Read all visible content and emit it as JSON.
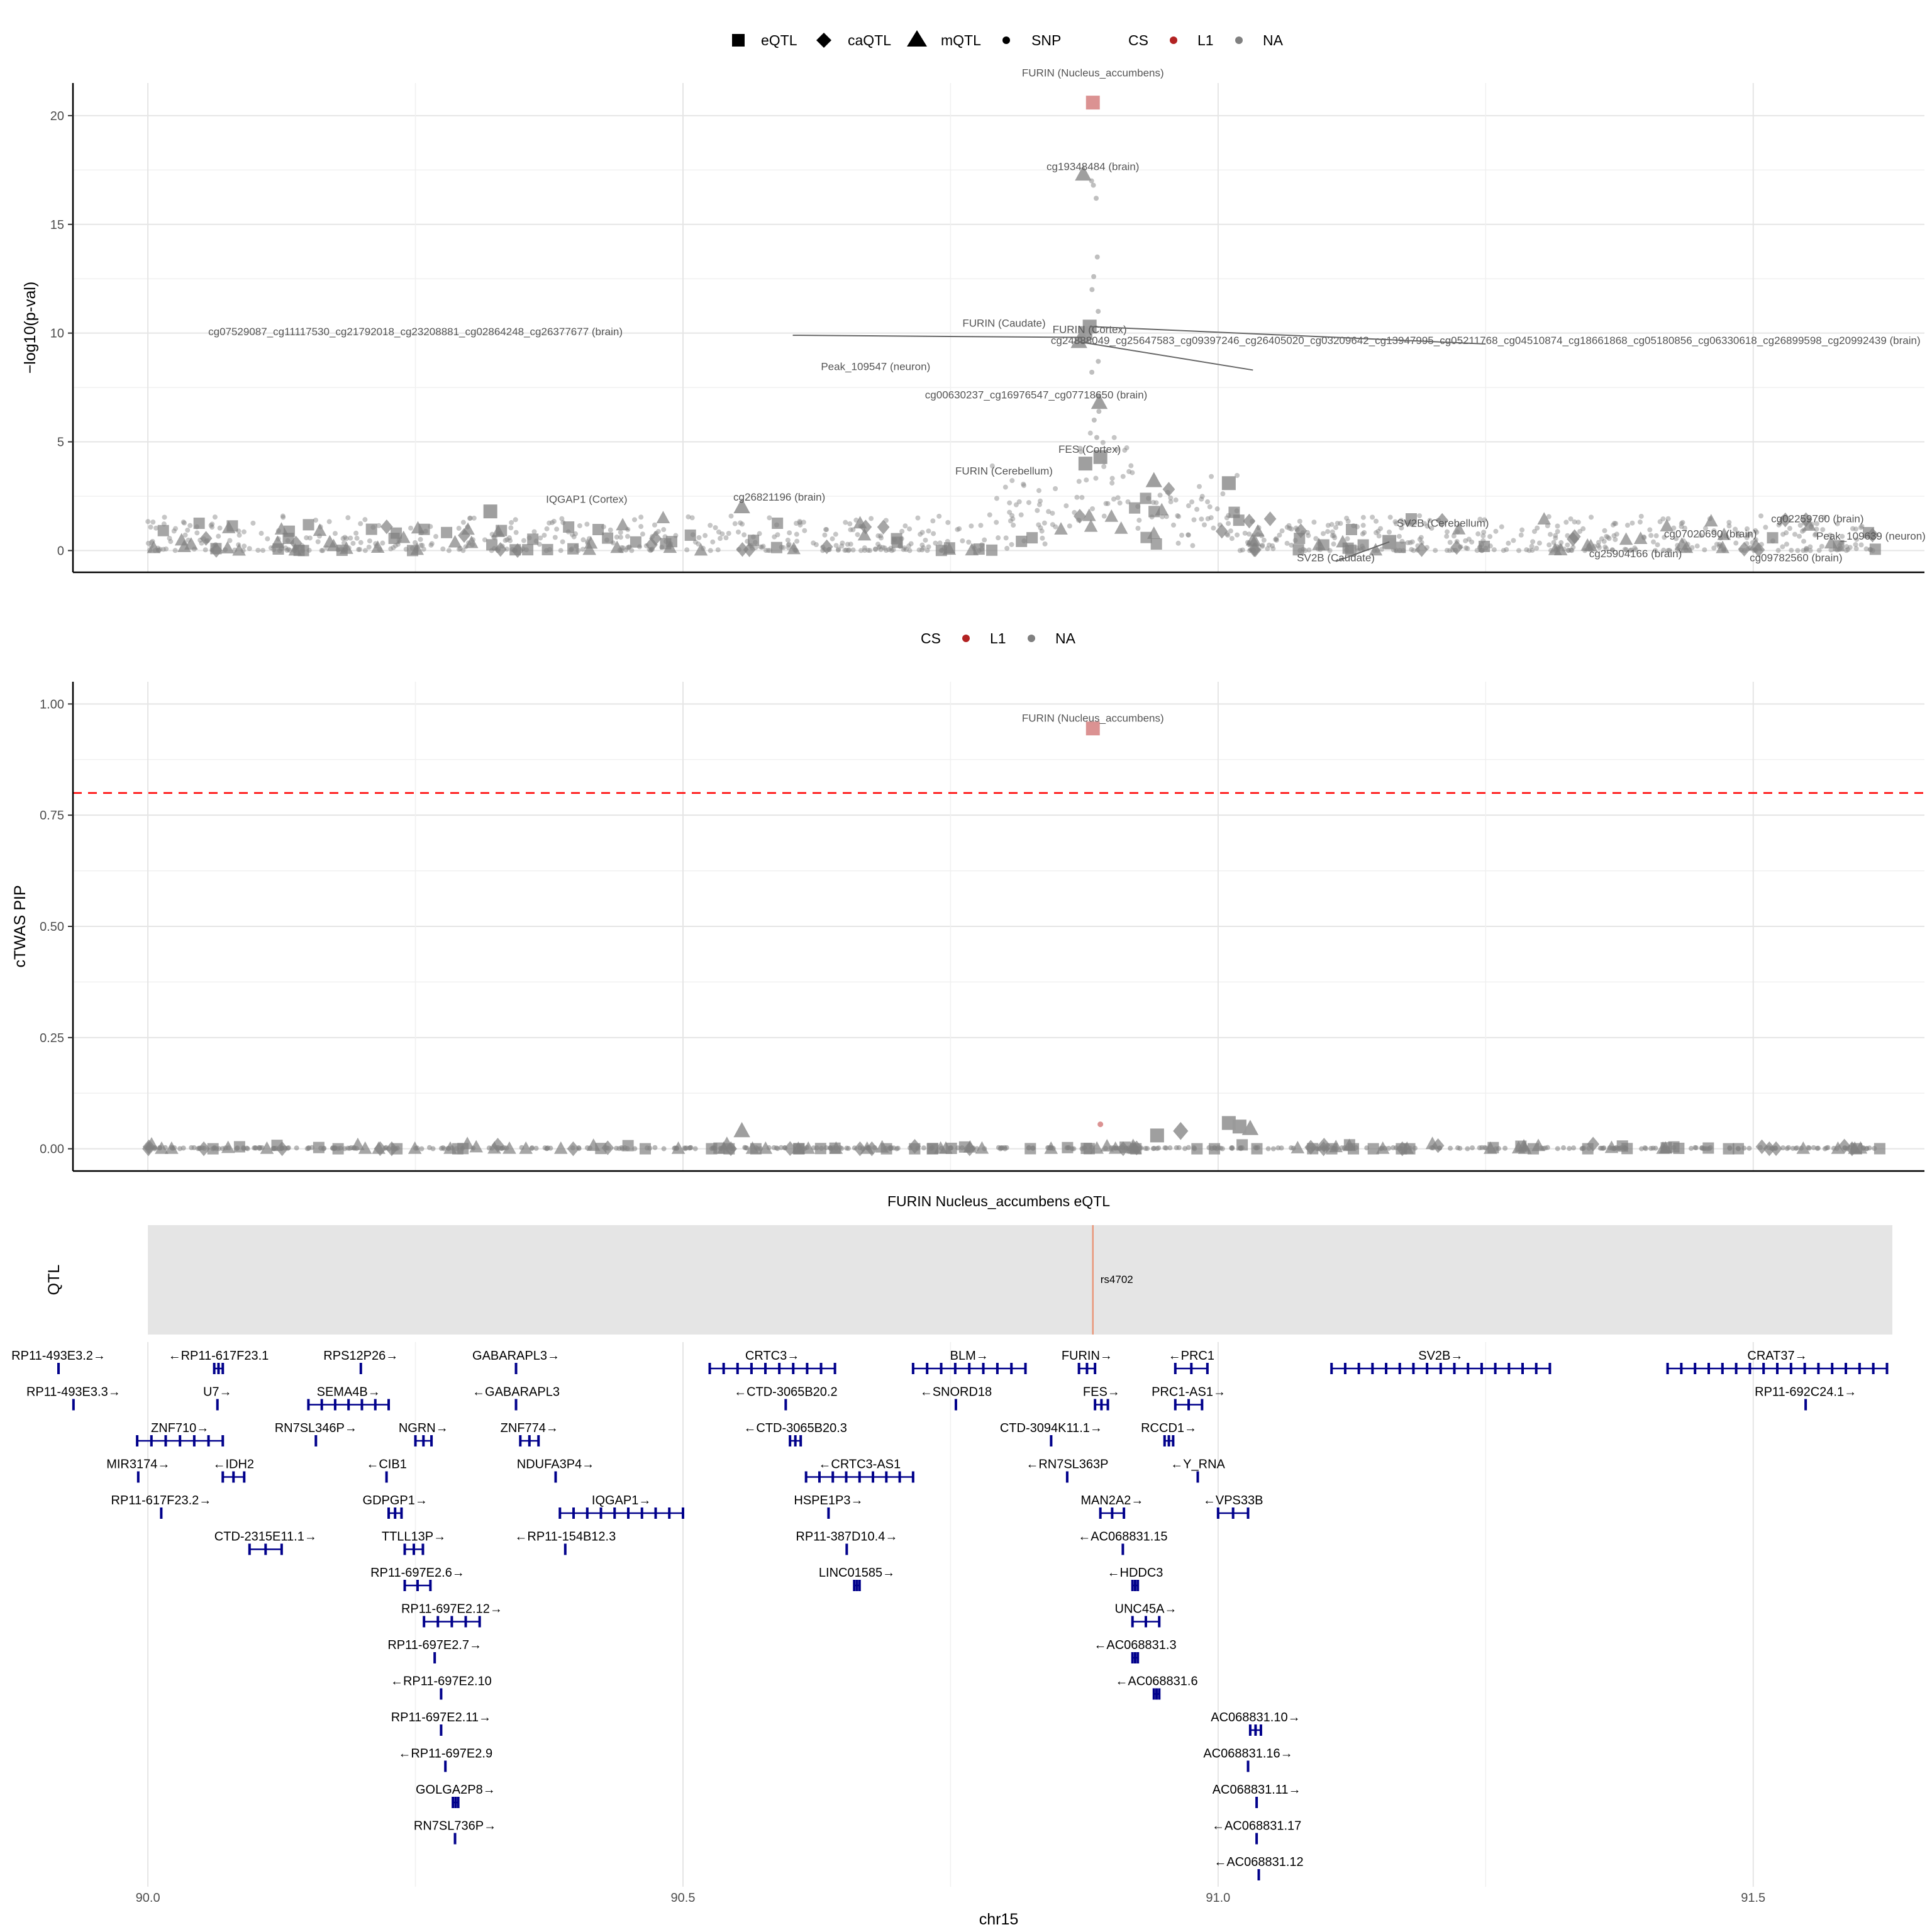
{
  "legend_top": {
    "shape_items": [
      {
        "label": "eQTL",
        "shape": "square"
      },
      {
        "label": "caQTL",
        "shape": "diamond"
      },
      {
        "label": "mQTL",
        "shape": "triangle"
      },
      {
        "label": "SNP",
        "shape": "dot"
      }
    ],
    "cs_title": "CS",
    "cs_items": [
      {
        "label": "L1",
        "color": "#B22222"
      },
      {
        "label": "NA",
        "color": "#808080"
      }
    ]
  },
  "legend_mid": {
    "cs_title": "CS",
    "cs_items": [
      {
        "label": "L1",
        "color": "#B22222"
      },
      {
        "label": "NA",
        "color": "#808080"
      }
    ]
  },
  "chart_data": [
    {
      "type": "scatter",
      "title": "",
      "ylabel": "−log10(p-val)",
      "xlim": [
        89.93,
        91.66
      ],
      "ylim": [
        -1,
        21.5
      ],
      "yticks": [
        0,
        5,
        10,
        15,
        20
      ],
      "grid": true,
      "highlight_points": [
        {
          "x": 90.883,
          "y": 20.6,
          "shape": "square",
          "cs": "L1"
        },
        {
          "x": 90.874,
          "y": 17.3,
          "shape": "triangle",
          "cs": "NA"
        },
        {
          "x": 90.876,
          "y": 10.0,
          "shape": "square",
          "cs": "NA"
        },
        {
          "x": 90.88,
          "y": 10.3,
          "shape": "square",
          "cs": "NA"
        },
        {
          "x": 90.873,
          "y": 9.8,
          "shape": "triangle",
          "cs": "NA"
        },
        {
          "x": 90.87,
          "y": 9.6,
          "shape": "triangle",
          "cs": "NA"
        },
        {
          "x": 90.889,
          "y": 6.8,
          "shape": "triangle",
          "cs": "NA"
        },
        {
          "x": 90.89,
          "y": 4.3,
          "shape": "square",
          "cs": "NA"
        },
        {
          "x": 90.876,
          "y": 4.0,
          "shape": "square",
          "cs": "NA"
        },
        {
          "x": 90.32,
          "y": 1.8,
          "shape": "square",
          "cs": "NA"
        },
        {
          "x": 90.555,
          "y": 2.0,
          "shape": "triangle",
          "cs": "NA"
        },
        {
          "x": 90.94,
          "y": 3.2,
          "shape": "triangle",
          "cs": "NA"
        },
        {
          "x": 91.01,
          "y": 3.1,
          "shape": "square",
          "cs": "NA"
        },
        {
          "x": 91.16,
          "y": 0.4,
          "shape": "square",
          "cs": "NA"
        }
      ],
      "annotations": [
        {
          "text": "FURIN (Nucleus_accumbens)",
          "x": 90.883,
          "y": 21.8
        },
        {
          "text": "cg19348484 (brain)",
          "x": 90.883,
          "y": 17.5
        },
        {
          "text": "FURIN (Cortex)",
          "x": 90.88,
          "y": 10.0
        },
        {
          "text": "FURIN (Caudate)",
          "x": 90.8,
          "y": 10.3
        },
        {
          "text": "cg07529087_cg11117530_cg21792018_cg23208881_cg02864248_cg26377677 (brain)",
          "x": 90.25,
          "y": 9.9
        },
        {
          "text": "cg24888049_cg25647583_cg09397246_cg26405020_cg03209642_cg13947995_cg05211768_cg04510874_cg18661868_cg05180856_cg06330618_cg26899598_cg20992439 (brain)",
          "x": 91.25,
          "y": 9.5
        },
        {
          "text": "Peak_109547 (neuron)",
          "x": 90.68,
          "y": 8.3
        },
        {
          "text": "cg00630237_cg16976547_cg07718650 (brain)",
          "x": 90.83,
          "y": 7.0
        },
        {
          "text": "FES (Cortex)",
          "x": 90.88,
          "y": 4.5
        },
        {
          "text": "FURIN (Cerebellum)",
          "x": 90.8,
          "y": 3.5
        },
        {
          "text": "IQGAP1 (Cortex)",
          "x": 90.41,
          "y": 2.2
        },
        {
          "text": "cg26821196 (brain)",
          "x": 90.59,
          "y": 2.3
        },
        {
          "text": "SV2B (Cerebellum)",
          "x": 91.21,
          "y": 1.1
        },
        {
          "text": "SV2B (Caudate)",
          "x": 91.11,
          "y": -0.5
        },
        {
          "text": "cg02259760 (brain)",
          "x": 91.56,
          "y": 1.3
        },
        {
          "text": "cg07020690 (brain)",
          "x": 91.46,
          "y": 0.6
        },
        {
          "text": "Peak_109639 (neuron)",
          "x": 91.61,
          "y": 0.5
        },
        {
          "text": "cg25904166 (brain)",
          "x": 91.39,
          "y": -0.3
        },
        {
          "text": "cg09782560 (brain)",
          "x": 91.54,
          "y": -0.5
        }
      ]
    },
    {
      "type": "scatter",
      "title": "",
      "ylabel": "cTWAS PIP",
      "xlim": [
        89.93,
        91.66
      ],
      "ylim": [
        -0.05,
        1.05
      ],
      "yticks": [
        0.0,
        0.25,
        0.5,
        0.75,
        1.0
      ],
      "ytick_labels": [
        "0.00",
        "0.25",
        "0.50",
        "0.75",
        "1.00"
      ],
      "threshold": 0.8,
      "grid": true,
      "highlight_points": [
        {
          "x": 90.883,
          "y": 0.945,
          "shape": "square",
          "cs": "L1"
        },
        {
          "x": 90.555,
          "y": 0.04,
          "shape": "triangle",
          "cs": "NA"
        },
        {
          "x": 90.965,
          "y": 0.04,
          "shape": "diamond",
          "cs": "NA"
        },
        {
          "x": 91.01,
          "y": 0.058,
          "shape": "square",
          "cs": "NA"
        },
        {
          "x": 91.02,
          "y": 0.05,
          "shape": "square",
          "cs": "NA"
        },
        {
          "x": 91.03,
          "y": 0.045,
          "shape": "triangle",
          "cs": "NA"
        },
        {
          "x": 90.943,
          "y": 0.03,
          "shape": "square",
          "cs": "NA"
        },
        {
          "x": 90.89,
          "y": 0.055,
          "shape": "dot",
          "cs": "L1"
        }
      ],
      "annotations": [
        {
          "text": "FURIN (Nucleus_accumbens)",
          "x": 90.883,
          "y": 0.96
        }
      ]
    },
    {
      "type": "track",
      "title": "FURIN Nucleus_accumbens eQTL",
      "ylabel": "QTL",
      "xlim": [
        89.93,
        91.66
      ],
      "qtl_track": {
        "start": 90.0,
        "end": 91.63,
        "variant_x": 90.883,
        "variant_label": "rs4702"
      }
    },
    {
      "type": "gene_track",
      "xlabel": "chr15",
      "xlim": [
        89.93,
        91.66
      ],
      "xticks": [
        90.0,
        90.5,
        91.0,
        91.5
      ],
      "xtick_labels": [
        "90.0",
        "90.5",
        "91.0",
        "91.5"
      ],
      "genes": [
        {
          "label": "RP11-493E3.2→",
          "start": 89.915,
          "end": 89.918,
          "row": 0
        },
        {
          "label": "RP11-493E3.3→",
          "start": 89.929,
          "end": 89.932,
          "row": 1
        },
        {
          "label": "←RP11-617F23.1",
          "start": 90.062,
          "end": 90.07,
          "row": 0
        },
        {
          "label": "U7→",
          "start": 90.064,
          "end": 90.066,
          "row": 1
        },
        {
          "label": "ZNF710→",
          "start": 89.99,
          "end": 90.07,
          "row": 2
        },
        {
          "label": "MIR3174→",
          "start": 89.99,
          "end": 89.992,
          "row": 3
        },
        {
          "label": "←IDH2",
          "start": 90.07,
          "end": 90.09,
          "row": 3
        },
        {
          "label": "RP11-617F23.2→",
          "start": 90.011,
          "end": 90.014,
          "row": 4
        },
        {
          "label": "CTD-2315E11.1→",
          "start": 90.095,
          "end": 90.125,
          "row": 5
        },
        {
          "label": "RPS12P26→",
          "start": 90.198,
          "end": 90.2,
          "row": 0
        },
        {
          "label": "SEMA4B→",
          "start": 90.15,
          "end": 90.225,
          "row": 1
        },
        {
          "label": "RN7SL346P→",
          "start": 90.156,
          "end": 90.158,
          "row": 2
        },
        {
          "label": "←CIB1",
          "start": 90.221,
          "end": 90.225,
          "row": 3
        },
        {
          "label": "GDPGP1→",
          "start": 90.225,
          "end": 90.237,
          "row": 4
        },
        {
          "label": "TTLL13P→",
          "start": 90.24,
          "end": 90.257,
          "row": 5
        },
        {
          "label": "RP11-697E2.6→",
          "start": 90.24,
          "end": 90.264,
          "row": 6
        },
        {
          "label": "RP11-697E2.12→",
          "start": 90.258,
          "end": 90.31,
          "row": 7
        },
        {
          "label": "RP11-697E2.7→",
          "start": 90.267,
          "end": 90.269,
          "row": 8
        },
        {
          "label": "←RP11-697E2.10",
          "start": 90.273,
          "end": 90.275,
          "row": 9
        },
        {
          "label": "RP11-697E2.11→",
          "start": 90.273,
          "end": 90.275,
          "row": 10
        },
        {
          "label": "←RP11-697E2.9",
          "start": 90.277,
          "end": 90.279,
          "row": 11
        },
        {
          "label": "GOLGA2P8→",
          "start": 90.285,
          "end": 90.29,
          "row": 12
        },
        {
          "label": "RN7SL736P→",
          "start": 90.286,
          "end": 90.288,
          "row": 13
        },
        {
          "label": "NGRN→",
          "start": 90.25,
          "end": 90.265,
          "row": 2
        },
        {
          "label": "GABARAPL3→",
          "start": 90.342,
          "end": 90.346,
          "row": 0
        },
        {
          "label": "←GABARAPL3",
          "start": 90.342,
          "end": 90.346,
          "row": 1
        },
        {
          "label": "ZNF774→",
          "start": 90.348,
          "end": 90.365,
          "row": 2
        },
        {
          "label": "NDUFA3P4→",
          "start": 90.38,
          "end": 90.382,
          "row": 3
        },
        {
          "label": "IQGAP1→",
          "start": 90.385,
          "end": 90.5,
          "row": 4
        },
        {
          "label": "←RP11-154B12.3",
          "start": 90.388,
          "end": 90.392,
          "row": 5
        },
        {
          "label": "CRTC3→",
          "start": 90.525,
          "end": 90.642,
          "row": 0
        },
        {
          "label": "←CTD-3065B20.2",
          "start": 90.595,
          "end": 90.597,
          "row": 1
        },
        {
          "label": "←CTD-3065B20.3",
          "start": 90.6,
          "end": 90.61,
          "row": 2
        },
        {
          "label": "←CRTC3-AS1",
          "start": 90.615,
          "end": 90.715,
          "row": 3
        },
        {
          "label": "HSPE1P3→",
          "start": 90.635,
          "end": 90.637,
          "row": 4
        },
        {
          "label": "RP11-387D10.4→",
          "start": 90.652,
          "end": 90.654,
          "row": 5
        },
        {
          "label": "LINC01585→",
          "start": 90.66,
          "end": 90.665,
          "row": 6
        },
        {
          "label": "BLM→",
          "start": 90.715,
          "end": 90.82,
          "row": 0
        },
        {
          "label": "←SNORD18",
          "start": 90.754,
          "end": 90.756,
          "row": 1
        },
        {
          "label": "CTD-3094K11.1→",
          "start": 90.843,
          "end": 90.845,
          "row": 2
        },
        {
          "label": "←RN7SL363P",
          "start": 90.858,
          "end": 90.86,
          "row": 3
        },
        {
          "label": "FURIN→",
          "start": 90.87,
          "end": 90.885,
          "row": 0
        },
        {
          "label": "FES→",
          "start": 90.885,
          "end": 90.897,
          "row": 1
        },
        {
          "label": "MAN2A2→",
          "start": 90.89,
          "end": 90.912,
          "row": 4
        },
        {
          "label": "←AC068831.15",
          "start": 90.91,
          "end": 90.912,
          "row": 5
        },
        {
          "label": "←HDDC3",
          "start": 90.92,
          "end": 90.925,
          "row": 6
        },
        {
          "label": "UNC45A→",
          "start": 90.92,
          "end": 90.945,
          "row": 7
        },
        {
          "label": "←AC068831.3",
          "start": 90.92,
          "end": 90.925,
          "row": 8
        },
        {
          "label": "←AC068831.6",
          "start": 90.94,
          "end": 90.945,
          "row": 9
        },
        {
          "label": "←PRC1",
          "start": 90.96,
          "end": 90.99,
          "row": 0
        },
        {
          "label": "PRC1-AS1→",
          "start": 90.96,
          "end": 90.985,
          "row": 1
        },
        {
          "label": "RCCD1→",
          "start": 90.95,
          "end": 90.958,
          "row": 2
        },
        {
          "label": "←Y_RNA",
          "start": 90.98,
          "end": 90.982,
          "row": 3
        },
        {
          "label": "←VPS33B",
          "start": 91.0,
          "end": 91.028,
          "row": 4
        },
        {
          "label": "AC068831.10→",
          "start": 91.03,
          "end": 91.04,
          "row": 10
        },
        {
          "label": "AC068831.16→",
          "start": 91.027,
          "end": 91.029,
          "row": 11
        },
        {
          "label": "AC068831.11→",
          "start": 91.035,
          "end": 91.037,
          "row": 12
        },
        {
          "label": "←AC068831.17",
          "start": 91.035,
          "end": 91.037,
          "row": 13
        },
        {
          "label": "←AC068831.12",
          "start": 91.037,
          "end": 91.039,
          "row": 14
        },
        {
          "label": "SV2B→",
          "start": 91.106,
          "end": 91.31,
          "row": 0
        },
        {
          "label": "CRAT37→",
          "start": 91.42,
          "end": 91.625,
          "row": 0
        },
        {
          "label": "RP11-692C24.1→",
          "start": 91.548,
          "end": 91.55,
          "row": 1
        }
      ]
    }
  ]
}
